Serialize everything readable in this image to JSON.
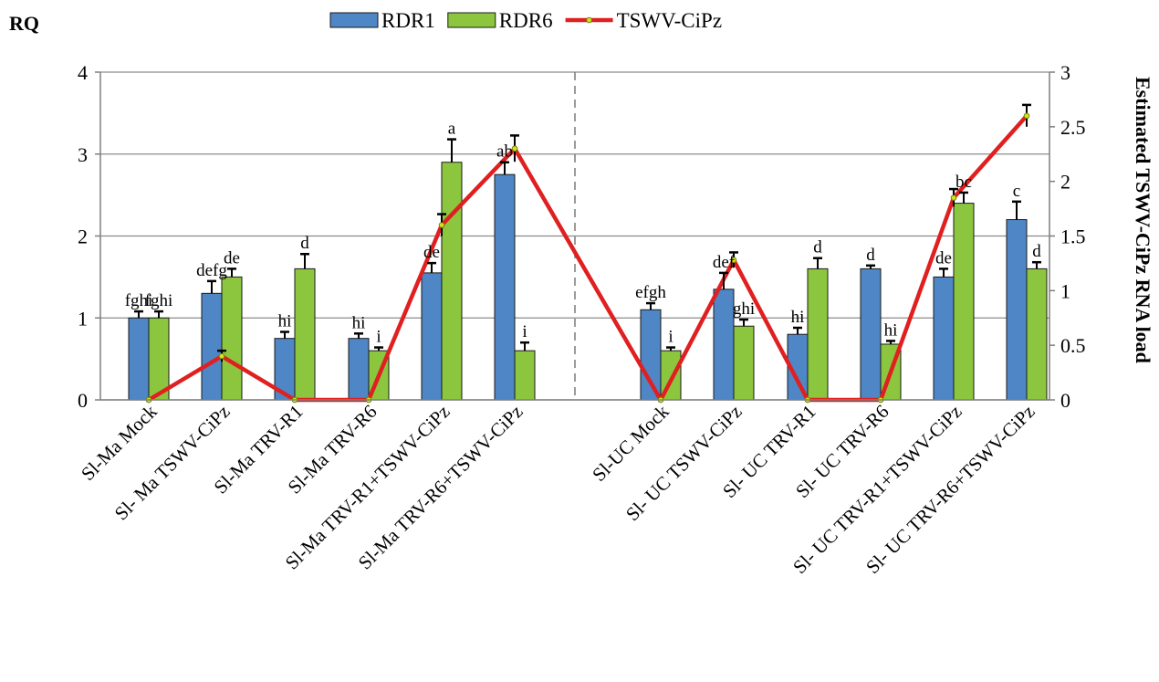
{
  "chart_data": {
    "type": "bar",
    "categories": [
      "Sl-Ma Mock",
      "Sl- Ma TSWV-CiPz",
      "Sl-Ma TRV-R1",
      "Sl-Ma TRV-R6",
      "Sl-Ma TRV-R1+TSWV-CiPz",
      "Sl-Ma TRV-R6+TSWV-CiPz",
      "Sl-UC Mock",
      "Sl- UC TSWV-CiPz",
      "Sl- UC TRV-R1",
      "Sl- UC TRV-R6",
      "Sl- UC TRV-R1+TSWV-CiPz",
      "Sl- UC TRV-R6+TSWV-CiPz"
    ],
    "ylabel": "RQ",
    "y2label": "Estimated TSWV-CiPz RNA load",
    "ylim": [
      0,
      4
    ],
    "y2lim": [
      0,
      3
    ],
    "yticks": [
      "0",
      "1",
      "2",
      "3",
      "4"
    ],
    "y2ticks": [
      "0",
      "0.5",
      "1",
      "1.5",
      "2",
      "2.5",
      "3"
    ],
    "grid": true,
    "legend_position": "top",
    "series": [
      {
        "name": "RDR1",
        "kind": "bar",
        "axis": "left",
        "color": "#4f86c6",
        "values": [
          1.0,
          1.3,
          0.75,
          0.75,
          1.55,
          2.75,
          1.1,
          1.35,
          0.8,
          1.6,
          1.5,
          2.2
        ],
        "errors": [
          0.08,
          0.15,
          0.08,
          0.06,
          0.12,
          0.15,
          0.08,
          0.2,
          0.08,
          0.04,
          0.1,
          0.22
        ],
        "labels": [
          "fghi",
          "defg",
          "hi",
          "hi",
          "de",
          "ab",
          "efgh",
          "def",
          "hi",
          "d",
          "de",
          "c"
        ]
      },
      {
        "name": "RDR6",
        "kind": "bar",
        "axis": "left",
        "color": "#8cc63f",
        "values": [
          1.0,
          1.5,
          1.6,
          0.6,
          2.9,
          0.6,
          0.6,
          0.9,
          1.6,
          0.68,
          2.4,
          1.6
        ],
        "errors": [
          0.08,
          0.1,
          0.18,
          0.04,
          0.28,
          0.1,
          0.04,
          0.08,
          0.13,
          0.04,
          0.13,
          0.08
        ],
        "labels": [
          "fghi",
          "de",
          "d",
          "i",
          "a",
          "i",
          "i",
          "ghi",
          "d",
          "hi",
          "bc",
          "d"
        ]
      },
      {
        "name": "TSWV-CiPz",
        "kind": "line",
        "axis": "right",
        "color": "#e02020",
        "values": [
          0,
          0.4,
          0,
          0,
          1.6,
          2.3,
          0,
          1.28,
          0,
          0,
          1.85,
          2.6
        ],
        "errors": [
          0,
          0.05,
          0,
          0,
          0.1,
          0.12,
          0,
          0.07,
          0,
          0,
          0.08,
          0.1
        ]
      }
    ]
  }
}
